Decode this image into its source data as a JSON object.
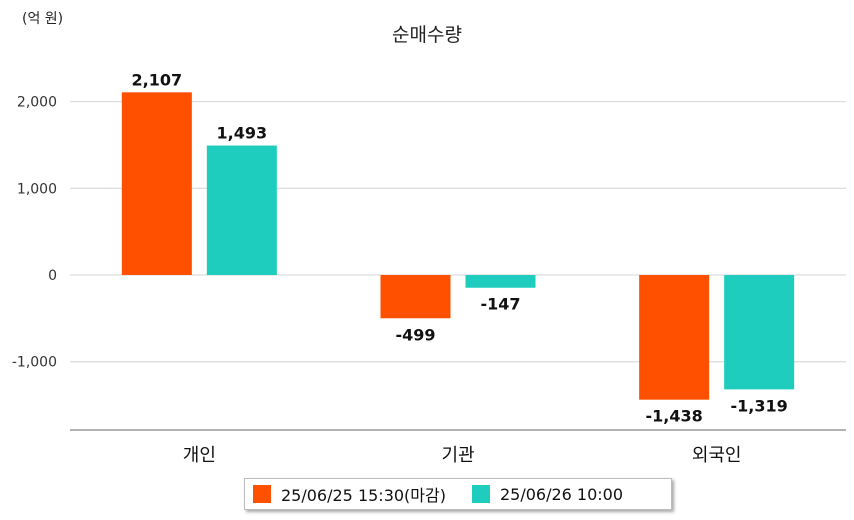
{
  "chart_data": {
    "type": "bar",
    "title": "순매수량",
    "unit_label": "(억 원)",
    "categories": [
      "개인",
      "기관",
      "외국인"
    ],
    "series": [
      {
        "name": "25/06/25 15:30(마감)",
        "color": "#ff5000",
        "values": [
          2107,
          -499,
          -1438
        ],
        "labels": [
          "2,107",
          "-499",
          "-1,438"
        ]
      },
      {
        "name": "25/06/26 10:00",
        "color": "#1ecdbd",
        "values": [
          1493,
          -147,
          -1319
        ],
        "labels": [
          "1,493",
          "-147",
          "-1,319"
        ]
      }
    ],
    "yticks": [
      2000,
      1000,
      0,
      -1000
    ],
    "ytick_labels": [
      "2,000",
      "1,000",
      "0",
      "-1,000"
    ],
    "ylim": [
      -1800,
      2500
    ],
    "grid": true,
    "legend_position": "bottom"
  }
}
